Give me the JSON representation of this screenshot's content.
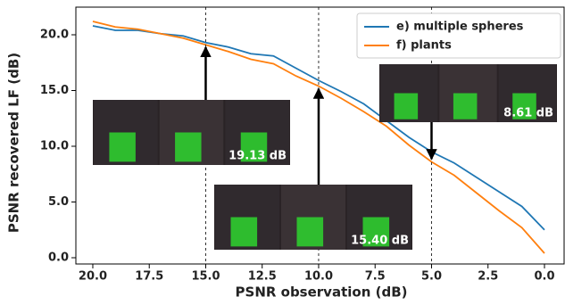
{
  "chart_data": {
    "type": "line",
    "xlabel": "PSNR observation (dB)",
    "ylabel": "PSNR recovered LF (dB)",
    "x": [
      20,
      19,
      18,
      17,
      16,
      15,
      14,
      13,
      12,
      11,
      10,
      9,
      8,
      7,
      6,
      5,
      4,
      3,
      2,
      1,
      0
    ],
    "series": [
      {
        "name": "e) multiple spheres",
        "color": "#1f77b4",
        "values": [
          20.8,
          20.4,
          20.4,
          20.1,
          19.9,
          19.3,
          18.9,
          18.3,
          18.1,
          17.0,
          15.9,
          14.9,
          13.8,
          12.3,
          10.8,
          9.5,
          8.5,
          7.2,
          5.9,
          4.6,
          2.5
        ]
      },
      {
        "name": "f) plants",
        "color": "#ff7f0e",
        "values": [
          21.2,
          20.7,
          20.5,
          20.1,
          19.7,
          19.1,
          18.5,
          17.8,
          17.4,
          16.3,
          15.4,
          14.3,
          13.1,
          11.8,
          10.1,
          8.6,
          7.4,
          5.8,
          4.2,
          2.7,
          0.4
        ]
      }
    ],
    "xlim": [
      20.75,
      -0.87
    ],
    "ylim": [
      -0.56,
      22.48
    ],
    "xticks": [
      {
        "value": 20,
        "label": "20.0"
      },
      {
        "value": 17.5,
        "label": "17.5"
      },
      {
        "value": 15,
        "label": "15.0"
      },
      {
        "value": 12.5,
        "label": "12.5"
      },
      {
        "value": 10,
        "label": "10.0"
      },
      {
        "value": 7.5,
        "label": "7.5"
      },
      {
        "value": 5,
        "label": "5.0"
      },
      {
        "value": 2.5,
        "label": "2.5"
      },
      {
        "value": 0,
        "label": "0.0"
      }
    ],
    "yticks": [
      {
        "value": 0,
        "label": "0.0"
      },
      {
        "value": 5,
        "label": "5.0"
      },
      {
        "value": 10,
        "label": "10.0"
      },
      {
        "value": 15,
        "label": "15.0"
      },
      {
        "value": 20,
        "label": "20.0"
      }
    ],
    "legend": "upper right",
    "annotations": [
      {
        "x": 15,
        "y": 19.13,
        "label": "19.13 dB"
      },
      {
        "x": 10,
        "y": 15.4,
        "label": "15.40 dB"
      },
      {
        "x": 5,
        "y": 8.61,
        "label": "8.61 dB"
      }
    ]
  }
}
